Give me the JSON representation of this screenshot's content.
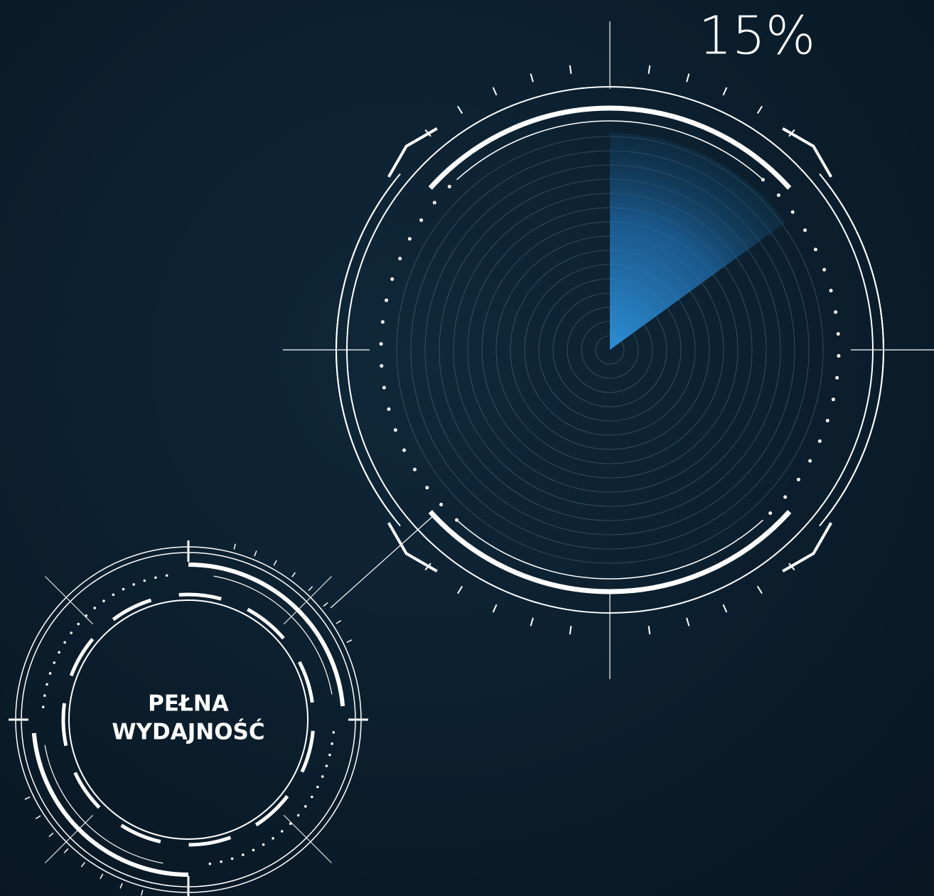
{
  "gauge": {
    "value": 15,
    "value_label": "15%"
  },
  "badge": {
    "line1": "PEŁNA",
    "line2": "WYDAJNOŚĆ"
  }
}
